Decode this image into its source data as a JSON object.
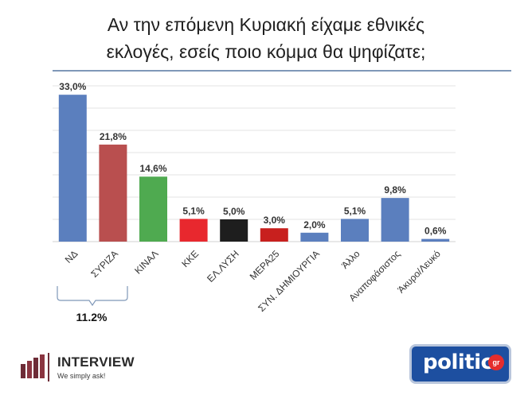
{
  "title_line1": "Αν την επόμενη Κυριακή είχαμε εθνικές",
  "title_line2": "εκλογές, εσείς ποιο κόμμα θα ψηφίζατε;",
  "chart_data": {
    "type": "bar",
    "categories": [
      "ΝΔ",
      "ΣΥΡΙΖΑ",
      "ΚΙΝΑΛ",
      "ΚΚΕ",
      "ΕΛ.ΛΥΣΗ",
      "ΜΕΡΑ25",
      "ΣΥΝ. ΔΗΜΙΟΥΡΓΙΑ",
      "Άλλο",
      "Αναποφάσιστος",
      "Άκυρο/Λευκό"
    ],
    "values": [
      33.0,
      21.8,
      14.6,
      5.1,
      5.0,
      3.0,
      2.0,
      5.1,
      9.8,
      0.6
    ],
    "value_labels": [
      "33,0%",
      "21,8%",
      "14,6%",
      "5,1%",
      "5,0%",
      "3,0%",
      "2,0%",
      "5,1%",
      "9,8%",
      "0,6%"
    ],
    "colors": [
      "#5b7fbe",
      "#b94f4f",
      "#4faa50",
      "#e8282e",
      "#1e1e1e",
      "#c8201e",
      "#5b7fbe",
      "#5b7fbe",
      "#5b7fbe",
      "#5b7fbe"
    ],
    "ylim": [
      0,
      35
    ],
    "grid": true,
    "legend": "none",
    "annotation": {
      "label": "11.2%",
      "spans": [
        "ΝΔ",
        "ΣΥΡΙΖΑ"
      ]
    }
  },
  "logos": {
    "interview": {
      "name": "INTERVIEW",
      "tagline": "We simply ask!"
    },
    "politic": {
      "name": "politic",
      "suffix": "gr"
    }
  }
}
